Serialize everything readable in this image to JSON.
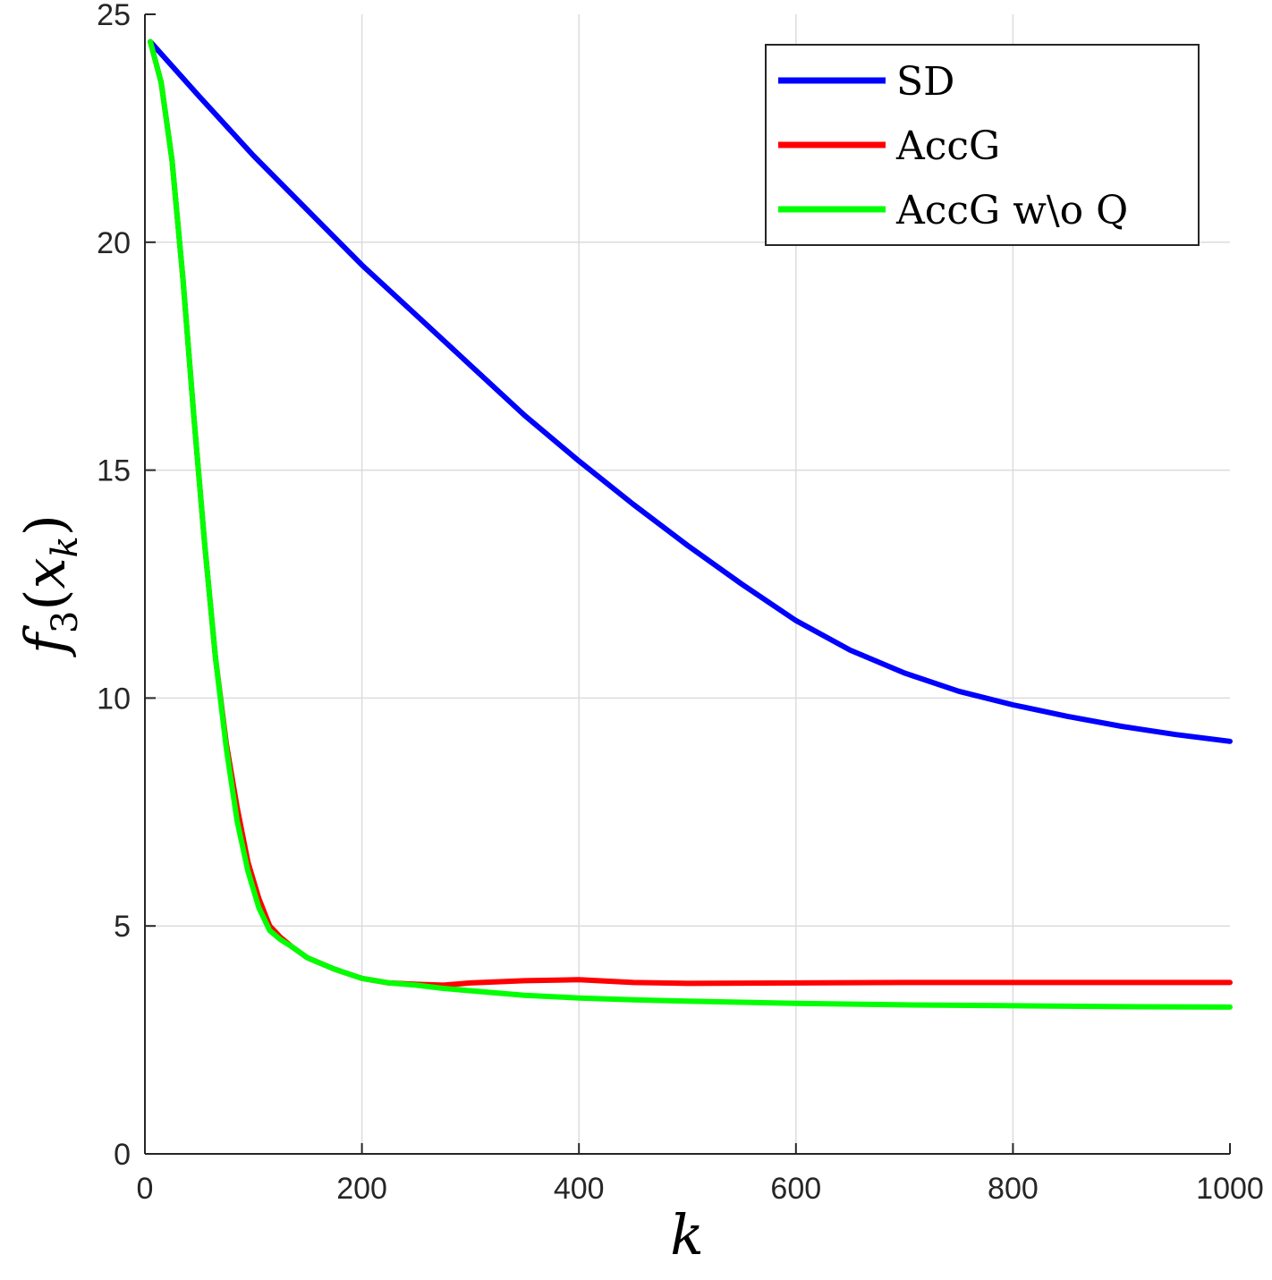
{
  "chart_data": {
    "type": "line",
    "xlabel": "k",
    "ylabel": "f3(xk)",
    "xlim": [
      0,
      1000
    ],
    "ylim": [
      0,
      25
    ],
    "xticks": [
      0,
      200,
      400,
      600,
      800,
      1000
    ],
    "yticks": [
      0,
      5,
      10,
      15,
      20,
      25
    ],
    "grid": true,
    "legend_position": "top-right",
    "series": [
      {
        "name": "SD",
        "color": "#0000ff",
        "x": [
          5,
          50,
          100,
          150,
          200,
          250,
          300,
          350,
          400,
          450,
          500,
          550,
          600,
          650,
          700,
          750,
          800,
          850,
          900,
          950,
          1000
        ],
        "y": [
          24.4,
          23.2,
          21.9,
          20.7,
          19.5,
          18.4,
          17.3,
          16.2,
          15.2,
          14.25,
          13.35,
          12.5,
          11.7,
          11.05,
          10.55,
          10.15,
          9.85,
          9.6,
          9.38,
          9.2,
          9.05
        ]
      },
      {
        "name": "AccG",
        "color": "#ff0000",
        "x": [
          5,
          15,
          25,
          35,
          45,
          55,
          65,
          75,
          85,
          95,
          105,
          115,
          125,
          135,
          150,
          175,
          200,
          225,
          250,
          275,
          300,
          350,
          400,
          450,
          500,
          600,
          700,
          800,
          900,
          1000
        ],
        "y": [
          24.4,
          23.5,
          21.8,
          19.2,
          16.2,
          13.4,
          10.9,
          9.0,
          7.6,
          6.4,
          5.6,
          5.0,
          4.75,
          4.55,
          4.3,
          4.05,
          3.85,
          3.75,
          3.72,
          3.7,
          3.75,
          3.8,
          3.82,
          3.76,
          3.74,
          3.75,
          3.76,
          3.76,
          3.76,
          3.76
        ]
      },
      {
        "name": "AccG w\\o Q",
        "color": "#00ff00",
        "x": [
          5,
          15,
          25,
          35,
          45,
          55,
          65,
          75,
          85,
          95,
          105,
          115,
          125,
          135,
          150,
          175,
          200,
          225,
          250,
          275,
          300,
          350,
          400,
          450,
          500,
          600,
          700,
          800,
          900,
          1000
        ],
        "y": [
          24.4,
          23.5,
          21.8,
          19.2,
          16.2,
          13.4,
          10.9,
          8.9,
          7.3,
          6.2,
          5.4,
          4.9,
          4.7,
          4.55,
          4.3,
          4.05,
          3.85,
          3.75,
          3.7,
          3.63,
          3.58,
          3.48,
          3.42,
          3.38,
          3.35,
          3.3,
          3.27,
          3.25,
          3.23,
          3.22
        ]
      }
    ]
  }
}
